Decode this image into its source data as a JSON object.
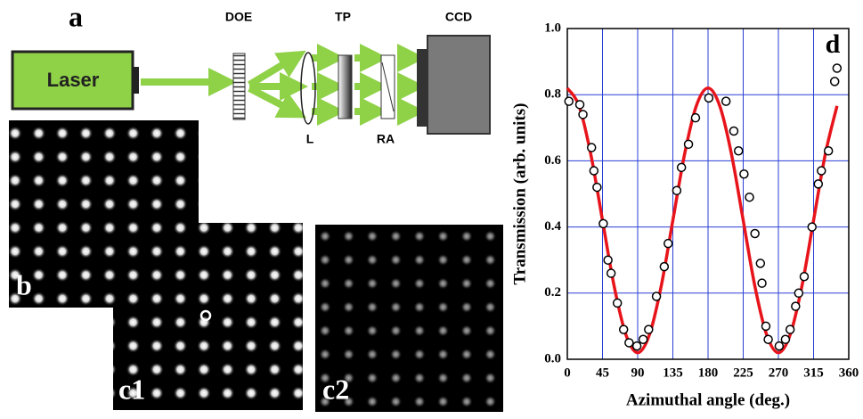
{
  "labels": {
    "panel_a": "a",
    "laser": "Laser",
    "doe": "DOE",
    "tp": "TP",
    "ccd": "CCD",
    "lens": "L",
    "ra": "RA",
    "panel_b": "b",
    "panel_c1": "c1",
    "panel_c2": "c2"
  },
  "chart_data": {
    "type": "scatter",
    "title": "d",
    "x_label": "Azimuthal angle (deg.)",
    "y_label": "Transmission (arb. units)",
    "xlim": [
      0,
      360
    ],
    "ylim": [
      0,
      1
    ],
    "xticks": [
      0,
      45,
      90,
      135,
      180,
      225,
      270,
      315,
      360
    ],
    "yticks": [
      {
        "value": 0,
        "label": "0.0"
      },
      0.2,
      0.4,
      0.6,
      0.8,
      {
        "value": 1,
        "label": "1.0"
      }
    ],
    "grid": true,
    "grid_color": "#2a3fd6",
    "series": [
      {
        "type": "scatter",
        "color": "#000000",
        "x": [
          2,
          16,
          20,
          31,
          34,
          38,
          46,
          52,
          56,
          64,
          72,
          79,
          89,
          97,
          104,
          114,
          124,
          129,
          140,
          146,
          155,
          164,
          181,
          203,
          213,
          219,
          226,
          233,
          240,
          247,
          249,
          254,
          257,
          271,
          279,
          285,
          292,
          296,
          303,
          313,
          321,
          325,
          334,
          342,
          345
        ],
        "values": [
          0.78,
          0.77,
          0.74,
          0.64,
          0.57,
          0.52,
          0.41,
          0.3,
          0.26,
          0.17,
          0.09,
          0.05,
          0.04,
          0.06,
          0.09,
          0.19,
          0.28,
          0.35,
          0.51,
          0.58,
          0.65,
          0.73,
          0.79,
          0.78,
          0.69,
          0.63,
          0.56,
          0.49,
          0.38,
          0.29,
          0.23,
          0.1,
          0.06,
          0.04,
          0.06,
          0.09,
          0.16,
          0.2,
          0.25,
          0.4,
          0.53,
          0.57,
          0.63,
          0.84,
          0.88
        ]
      },
      {
        "type": "line",
        "color": "#e8141b",
        "x": [
          0,
          15,
          30,
          45,
          60,
          75,
          90,
          105,
          120,
          135,
          150,
          165,
          180,
          195,
          210,
          225,
          240,
          255,
          270,
          285,
          300,
          315,
          330,
          345
        ],
        "values": [
          0.82,
          0.766,
          0.62,
          0.42,
          0.22,
          0.074,
          0.02,
          0.074,
          0.22,
          0.42,
          0.62,
          0.766,
          0.82,
          0.766,
          0.62,
          0.42,
          0.22,
          0.074,
          0.02,
          0.074,
          0.22,
          0.42,
          0.62,
          0.766
        ]
      }
    ]
  }
}
